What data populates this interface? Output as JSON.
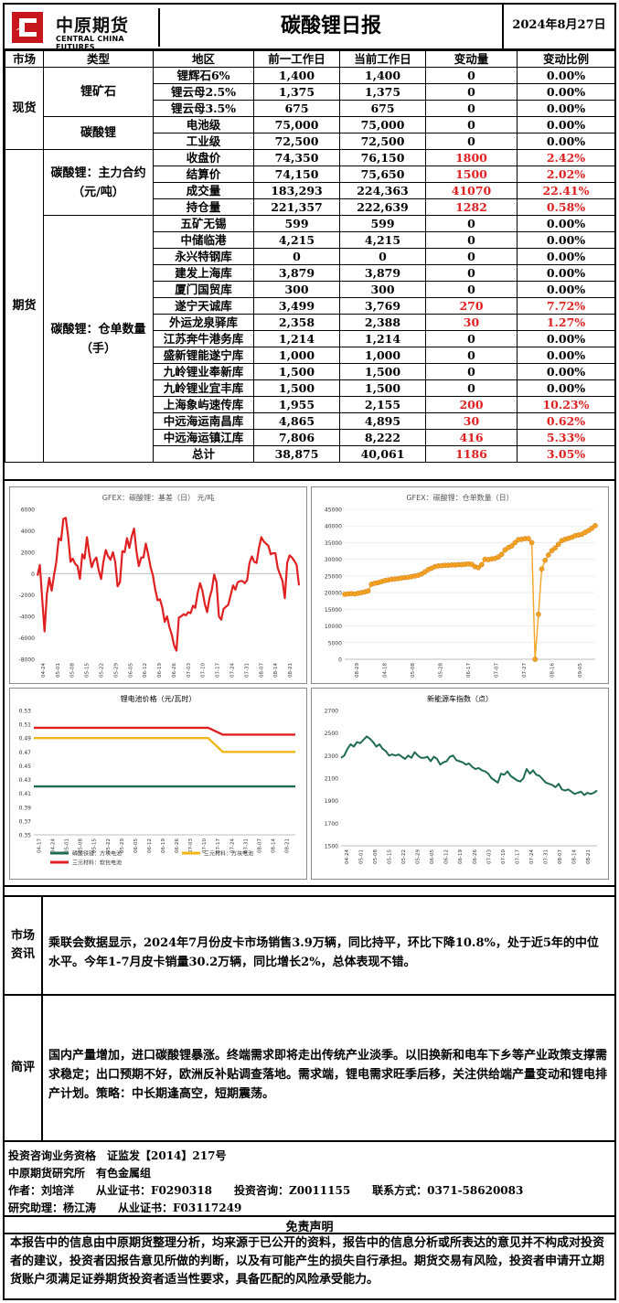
{
  "header": {
    "logo_cn": "中原期货",
    "logo_en": "CENTRAL CHINA FUTURES",
    "title": "碳酸锂日报",
    "date": "2024年8月27日"
  },
  "table": {
    "columns": [
      "市场",
      "类型",
      "地区",
      "前一工作日",
      "当前工作日",
      "变动量",
      "变动比例"
    ],
    "spot_market": "现货",
    "futures_market": "期货",
    "ore_label": "锂矿石",
    "ore_rows": [
      {
        "region": "锂辉石6%",
        "prev": "1,400",
        "curr": "1,400",
        "chg": "0",
        "pct": "0.00%",
        "up": false
      },
      {
        "region": "锂云母2.5%",
        "prev": "1,375",
        "curr": "1,375",
        "chg": "0",
        "pct": "0.00%",
        "up": false
      },
      {
        "region": "锂云母3.5%",
        "prev": "675",
        "curr": "675",
        "chg": "0",
        "pct": "0.00%",
        "up": false
      }
    ],
    "carb_label": "碳酸锂",
    "carb_rows": [
      {
        "region": "电池级",
        "prev": "75,000",
        "curr": "75,000",
        "chg": "0",
        "pct": "0.00%",
        "up": false
      },
      {
        "region": "工业级",
        "prev": "72,500",
        "curr": "72,500",
        "chg": "0",
        "pct": "0.00%",
        "up": false
      }
    ],
    "main_label": "碳酸锂：主力合约（元/吨）",
    "main_rows": [
      {
        "region": "收盘价",
        "prev": "74,350",
        "curr": "76,150",
        "chg": "1800",
        "pct": "2.42%",
        "up": true
      },
      {
        "region": "结算价",
        "prev": "74,150",
        "curr": "75,650",
        "chg": "1500",
        "pct": "2.02%",
        "up": true
      },
      {
        "region": "成交量",
        "prev": "183,293",
        "curr": "224,363",
        "chg": "41070",
        "pct": "22.41%",
        "up": true
      },
      {
        "region": "持仓量",
        "prev": "221,357",
        "curr": "222,639",
        "chg": "1282",
        "pct": "0.58%",
        "up": true
      }
    ],
    "wh_label": "碳酸锂：仓单数量（手）",
    "wh_rows": [
      {
        "region": "五矿无锡",
        "prev": "599",
        "curr": "599",
        "chg": "0",
        "pct": "0.00%",
        "up": false
      },
      {
        "region": "中储临港",
        "prev": "4,215",
        "curr": "4,215",
        "chg": "0",
        "pct": "0.00%",
        "up": false
      },
      {
        "region": "永兴特钢库",
        "prev": "0",
        "curr": "0",
        "chg": "0",
        "pct": "0.00%",
        "up": false
      },
      {
        "region": "建发上海库",
        "prev": "3,879",
        "curr": "3,879",
        "chg": "0",
        "pct": "0.00%",
        "up": false
      },
      {
        "region": "厦门国贸库",
        "prev": "300",
        "curr": "300",
        "chg": "0",
        "pct": "0.00%",
        "up": false
      },
      {
        "region": "遂宁天诚库",
        "prev": "3,499",
        "curr": "3,769",
        "chg": "270",
        "pct": "7.72%",
        "up": true
      },
      {
        "region": "外运龙泉驿库",
        "prev": "2,358",
        "curr": "2,388",
        "chg": "30",
        "pct": "1.27%",
        "up": true
      },
      {
        "region": "江苏奔牛港务库",
        "prev": "1,214",
        "curr": "1,214",
        "chg": "0",
        "pct": "0.00%",
        "up": false
      },
      {
        "region": "盛新锂能遂宁库",
        "prev": "1,000",
        "curr": "1,000",
        "chg": "0",
        "pct": "0.00%",
        "up": false
      },
      {
        "region": "九岭锂业奉新库",
        "prev": "1,500",
        "curr": "1,500",
        "chg": "0",
        "pct": "0.00%",
        "up": false
      },
      {
        "region": "九岭锂业宜丰库",
        "prev": "1,500",
        "curr": "1,500",
        "chg": "0",
        "pct": "0.00%",
        "up": false
      },
      {
        "region": "上海象屿速传库",
        "prev": "1,955",
        "curr": "2,155",
        "chg": "200",
        "pct": "10.23%",
        "up": true
      },
      {
        "region": "中远海运南昌库",
        "prev": "4,865",
        "curr": "4,895",
        "chg": "30",
        "pct": "0.62%",
        "up": true
      },
      {
        "region": "中远海运镇江库",
        "prev": "7,806",
        "curr": "8,222",
        "chg": "416",
        "pct": "5.33%",
        "up": true
      },
      {
        "region": "总计",
        "prev": "38,875",
        "curr": "40,061",
        "chg": "1186",
        "pct": "3.05%",
        "up": true
      }
    ]
  },
  "chart_data": [
    {
      "type": "line",
      "title": "GFEX：碳酸锂：基差（日） 元/吨",
      "x_ticks": [
        "04-24",
        "05-01",
        "05-08",
        "05-15",
        "05-22",
        "05-29",
        "06-05",
        "06-12",
        "06-19",
        "06-26",
        "07-03",
        "07-10",
        "07-17",
        "07-24",
        "07-31",
        "08-07",
        "08-14",
        "08-21"
      ],
      "ylim": [
        -8000,
        6000
      ],
      "y_ticks": [
        "6000",
        "4000",
        "2000",
        "0",
        "-2000",
        "-4000",
        "-6000",
        "-8000"
      ],
      "color": "#e02020",
      "values": [
        -200,
        800,
        -2400,
        -5400,
        -1900,
        -400,
        -1600,
        -200,
        1100,
        3300,
        3100,
        5100,
        5200,
        3500,
        1100,
        1400,
        900,
        700,
        -500,
        1800,
        1400,
        3400,
        1800,
        600,
        1200,
        1500,
        300,
        -500,
        1100,
        2200,
        1600,
        1300,
        2000,
        1100,
        -1200,
        -800,
        2100,
        2000,
        3300,
        2400,
        3500,
        4200,
        2100,
        700,
        1500,
        1500,
        2800,
        1800,
        600,
        -200,
        -1500,
        -2500,
        -2400,
        -3200,
        -4500,
        -4000,
        -5000,
        -5700,
        -6700,
        -7200,
        -4100,
        -4000,
        -3800,
        -3900,
        -3600,
        -3700,
        -3000,
        -3200,
        -1800,
        -900,
        -1600,
        -2800,
        -3600,
        -2300,
        -1500,
        -100,
        -800,
        -4000,
        -4300,
        -3300,
        -3100,
        -2900,
        -2000,
        -1100,
        -1500,
        -800,
        -700,
        -700,
        -900,
        -600,
        1000,
        1600,
        1100,
        1000,
        2400,
        3400,
        3000,
        2800,
        2600,
        1800,
        1900,
        1900,
        500,
        -100,
        -700,
        -2300,
        1000,
        1700,
        1500,
        1200,
        800,
        -1100
      ]
    },
    {
      "type": "scatter",
      "title": "GFEX：碳酸锂：仓单数量（日）",
      "x_ticks": [
        "08-29",
        "04-18",
        "05-08",
        "05-28",
        "06-17",
        "07-07",
        "07-27",
        "08-16",
        "09-05"
      ],
      "ylim": [
        0,
        45000
      ],
      "y_ticks": [
        "45000",
        "40000",
        "35000",
        "30000",
        "25000",
        "20000",
        "15000",
        "10000",
        "5000",
        "0"
      ],
      "color": "#f6a324",
      "values": [
        19500,
        19600,
        19700,
        19600,
        19800,
        20000,
        20200,
        20500,
        22500,
        22800,
        23000,
        23300,
        23600,
        23800,
        24000,
        24100,
        24200,
        24400,
        24500,
        24600,
        24800,
        25000,
        25200,
        25600,
        26200,
        26900,
        27300,
        27800,
        28000,
        28100,
        28200,
        28200,
        28300,
        28300,
        28400,
        28400,
        28500,
        28600,
        28500,
        27800,
        27500,
        28400,
        30000,
        29900,
        30100,
        30300,
        30700,
        31500,
        32800,
        33500,
        34000,
        35000,
        35900,
        36000,
        36200,
        36200,
        35000,
        0,
        13500,
        27100,
        29700,
        31300,
        32600,
        33400,
        34500,
        35600,
        36000,
        36300,
        36600,
        37100,
        37300,
        37500,
        38100,
        38600,
        39300,
        40100
      ]
    },
    {
      "type": "line",
      "title": "锂电池价格（元/瓦时）",
      "x_ticks": [
        "04-17",
        "04-24",
        "05-01",
        "05-08",
        "05-15",
        "05-22",
        "05-29",
        "06-05",
        "06-12",
        "06-19",
        "06-26",
        "07-03",
        "07-10",
        "07-17",
        "07-24",
        "07-31",
        "08-07",
        "08-14",
        "08-21"
      ],
      "ylim": [
        0.35,
        0.53
      ],
      "y_ticks": [
        "0.53",
        "0.51",
        "0.49",
        "0.47",
        "0.45",
        "0.43",
        "0.41",
        "0.39",
        "0.37",
        "0.35"
      ],
      "series": [
        {
          "name": "磷酸铁锂：方块电池",
          "color": "#1e6b4e",
          "values": [
            0.42,
            0.42,
            0.42,
            0.42,
            0.42,
            0.42,
            0.42,
            0.42,
            0.42,
            0.42,
            0.42,
            0.42,
            0.42,
            0.42,
            0.42,
            0.42,
            0.42,
            0.42,
            0.42
          ]
        },
        {
          "name": "三元材料：方块电池",
          "color": "#f2b418",
          "values": [
            0.49,
            0.49,
            0.49,
            0.49,
            0.49,
            0.49,
            0.49,
            0.49,
            0.49,
            0.49,
            0.49,
            0.49,
            0.49,
            0.47,
            0.47,
            0.47,
            0.47,
            0.47,
            0.47
          ]
        },
        {
          "name": "三元材料：软包电池",
          "color": "#e02020",
          "values": [
            0.505,
            0.505,
            0.505,
            0.505,
            0.505,
            0.505,
            0.505,
            0.505,
            0.505,
            0.505,
            0.505,
            0.505,
            0.505,
            0.495,
            0.495,
            0.495,
            0.495,
            0.495,
            0.495
          ]
        }
      ]
    },
    {
      "type": "line",
      "title": "新能源车指数（点）",
      "x_ticks": [
        "04-24",
        "05-01",
        "05-08",
        "05-15",
        "05-22",
        "05-29",
        "06-05",
        "06-12",
        "06-19",
        "06-26",
        "07-03",
        "07-10",
        "07-17",
        "07-24",
        "07-31",
        "08-07",
        "08-14",
        "08-21"
      ],
      "ylim": [
        1500,
        2700
      ],
      "y_ticks": [
        "2700",
        "2500",
        "2300",
        "2100",
        "1900",
        "1700",
        "1500"
      ],
      "color": "#1e6b4e",
      "values": [
        2280,
        2300,
        2360,
        2400,
        2380,
        2420,
        2410,
        2440,
        2470,
        2450,
        2420,
        2380,
        2400,
        2360,
        2340,
        2300,
        2310,
        2300,
        2310,
        2290,
        2270,
        2300,
        2280,
        2330,
        2300,
        2280,
        2280,
        2290,
        2250,
        2290,
        2270,
        2220,
        2240,
        2250,
        2290,
        2300,
        2260,
        2250,
        2240,
        2220,
        2230,
        2200,
        2180,
        2190,
        2170,
        2160,
        2140,
        2100,
        2080,
        2060,
        2140,
        2130,
        2160,
        2120,
        2100,
        2080,
        2070,
        2100,
        2180,
        2140,
        2170,
        2130,
        2120,
        2090,
        2060,
        2050,
        2040,
        2020,
        2050,
        2000,
        1990,
        2000,
        1980,
        1960,
        1970,
        1980,
        1950,
        1970,
        1960,
        1970,
        1990
      ]
    }
  ],
  "market_info": {
    "label": "市场资讯",
    "text": "乘联会数据显示，2024年7月份皮卡市场销售3.9万辆，同比持平，环比下降10.8%，处于近5年的中位水平。今年1-7月皮卡销量30.2万辆，同比增长2%，总体表现不错。"
  },
  "comment": {
    "label": "简评",
    "text": "国内产量增加，进口碳酸锂暴涨。终端需求即将走出传统产业淡季。以旧换新和电车下乡等产业政策支撑需求稳定；出口预期不好，欧洲反补贴调查落地。需求端，锂电需求旺季后移，关注供给端产量变动和锂电排产计划。策略：中长期逢高空，短期震荡。"
  },
  "footer": {
    "line1": "投资咨询业务资格　证监发【2014】217号",
    "line2": "中原期货研究所　有色金属组",
    "line3": "作者：刘培洋　　从业证书：F0290318　　投资咨询：Z0011155　　联系方式：0371-58620083",
    "line4": "研究助理：杨江涛　　从业证书：F03117249",
    "disclaimer_title": "免责声明",
    "disclaimer": "本报告中的信息由中原期货整理分析，均来源于已公开的资料，报告中的信息分析或所表达的意见并不构成对投资者的建议，投资者因报告意见所做的判断，以及有可能产生的损失自行承担。期货交易有风险，投资者申请开立期货账户须满足证券期货投资者适当性要求，具备匹配的风险承受能力。"
  }
}
